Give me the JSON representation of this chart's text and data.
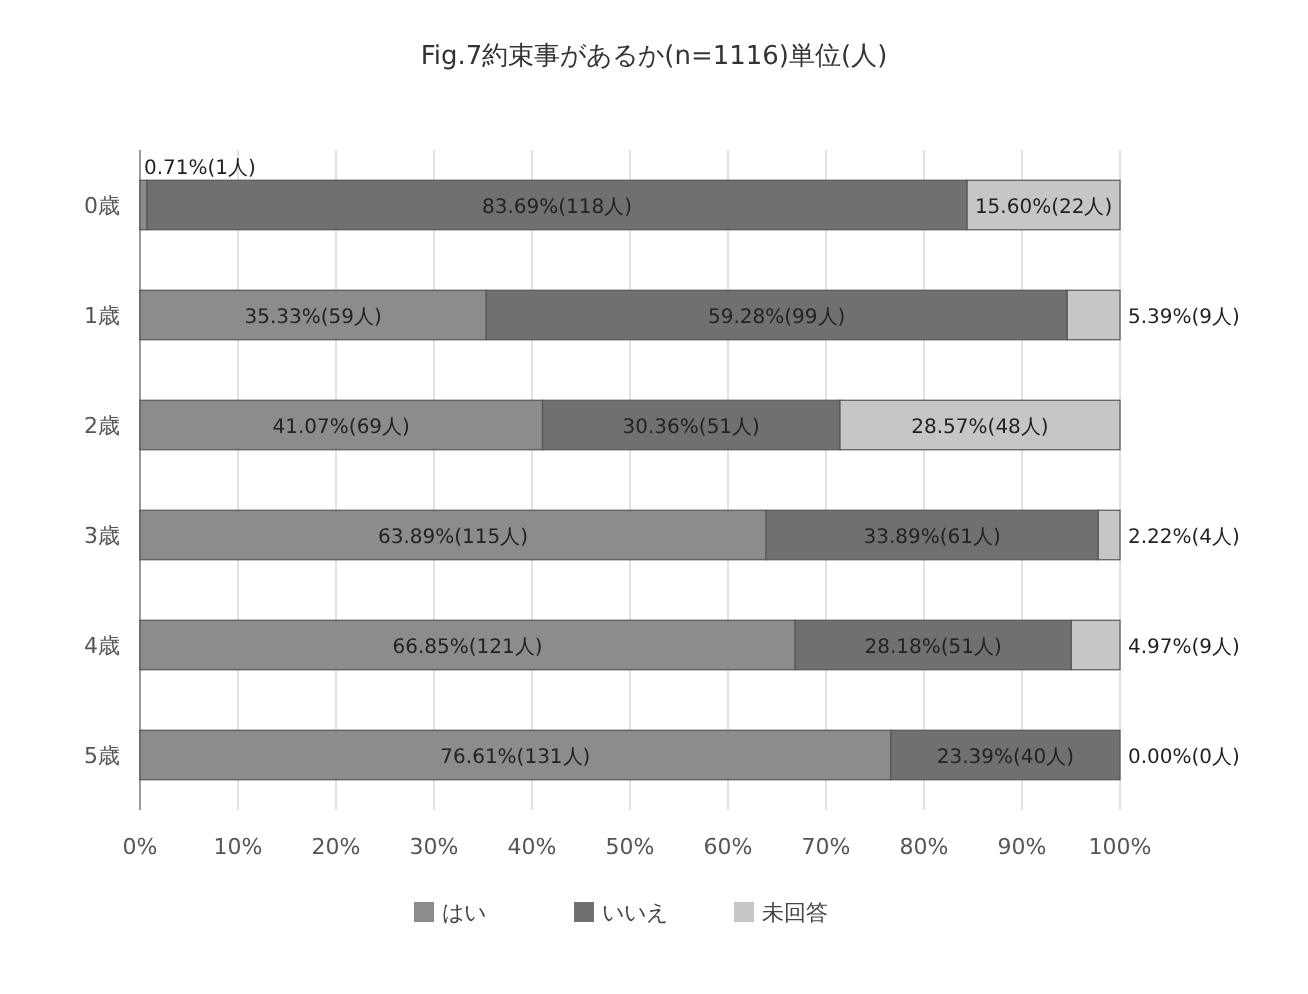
{
  "chart_data": {
    "type": "bar",
    "orientation": "horizontal",
    "stacked": true,
    "title": "Fig.7約束事があるか(n=1116)単位(人)",
    "categories": [
      "0歳",
      "1歳",
      "2歳",
      "3歳",
      "4歳",
      "5歳"
    ],
    "series": [
      {
        "name": "はい",
        "color": "#8c8c8c",
        "values": [
          0.71,
          35.33,
          41.07,
          63.89,
          66.85,
          76.61
        ],
        "value_labels": [
          "0.71%(1人)",
          "35.33%(59人)",
          "41.07%(69人)",
          "63.89%(115人)",
          "66.85%(121人)",
          "76.61%(131人)"
        ]
      },
      {
        "name": "いいえ",
        "color": "#707070",
        "values": [
          83.69,
          59.28,
          30.36,
          33.89,
          28.18,
          23.39
        ],
        "value_labels": [
          "83.69%(118人)",
          "59.28%(99人)",
          "30.36%(51人)",
          "33.89%(61人)",
          "28.18%(51人)",
          "23.39%(40人)"
        ]
      },
      {
        "name": "未回答",
        "color": "#c6c6c6",
        "values": [
          15.6,
          5.39,
          28.57,
          2.22,
          4.97,
          0
        ],
        "value_labels": [
          "15.60%(22人)",
          "5.39%(9人)",
          "28.57%(48人)",
          "2.22%(4人)",
          "4.97%(9人)",
          "0.00%(0人)"
        ]
      }
    ],
    "xlim": [
      0,
      100
    ],
    "xticks": [
      {
        "value": 0,
        "label": "0%"
      },
      {
        "value": 10,
        "label": "10%"
      },
      {
        "value": 20,
        "label": "20%"
      },
      {
        "value": 30,
        "label": "30%"
      },
      {
        "value": 40,
        "label": "40%"
      },
      {
        "value": 50,
        "label": "50%"
      },
      {
        "value": 60,
        "label": "60%"
      },
      {
        "value": 70,
        "label": "70%"
      },
      {
        "value": 80,
        "label": "80%"
      },
      {
        "value": 90,
        "label": "90%"
      },
      {
        "value": 100,
        "label": "100%"
      }
    ],
    "grid": "x",
    "legend": "bottom"
  }
}
